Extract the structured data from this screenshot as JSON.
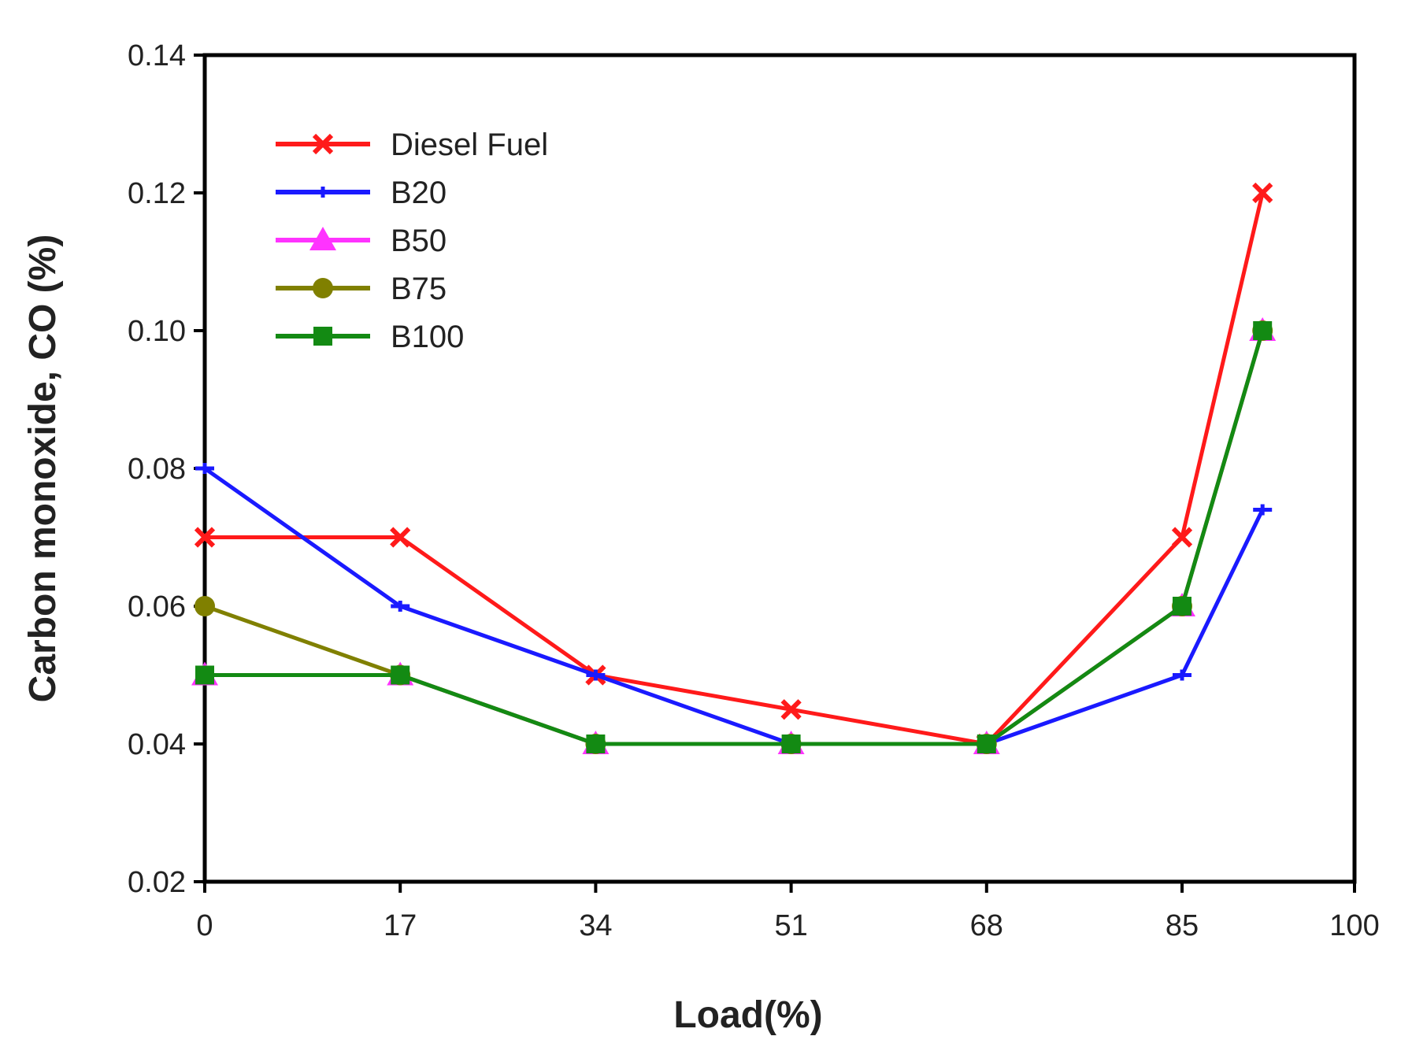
{
  "chart_data": {
    "type": "line",
    "title": "",
    "xlabel": "Load(%)",
    "ylabel": "Carbon monoxide, CO (%)",
    "xlim": [
      0,
      100
    ],
    "ylim": [
      0.02,
      0.14
    ],
    "xticks": [
      0,
      17,
      34,
      51,
      68,
      85,
      100
    ],
    "xtick_labels": [
      "0",
      "17",
      "34",
      "51",
      "68",
      "85",
      "100"
    ],
    "yticks": [
      0.02,
      0.04,
      0.06,
      0.08,
      0.1,
      0.12,
      0.14
    ],
    "ytick_labels": [
      "0.02",
      "0.04",
      "0.06",
      "0.08",
      "0.10",
      "0.12",
      "0.14"
    ],
    "grid": false,
    "legend_position": "top-left",
    "x": [
      0,
      17,
      34,
      51,
      68,
      85,
      92
    ],
    "series": [
      {
        "name": "Diesel Fuel",
        "color": "#ff1a1a",
        "marker": "x",
        "values": [
          0.07,
          0.07,
          0.05,
          0.045,
          0.04,
          0.07,
          0.12
        ]
      },
      {
        "name": "B20",
        "color": "#1a1aff",
        "marker": "plus",
        "values": [
          0.08,
          0.06,
          0.05,
          0.04,
          0.04,
          0.05,
          0.074
        ]
      },
      {
        "name": "B50",
        "color": "#ff33ff",
        "marker": "triangle",
        "values": [
          0.05,
          0.05,
          0.04,
          0.04,
          0.04,
          0.06,
          0.1
        ]
      },
      {
        "name": "B75",
        "color": "#808000",
        "marker": "circle",
        "values": [
          0.06,
          0.05,
          0.04,
          0.04,
          0.04,
          0.06,
          0.1
        ]
      },
      {
        "name": "B100",
        "color": "#138a13",
        "marker": "square",
        "values": [
          0.05,
          0.05,
          0.04,
          0.04,
          0.04,
          0.06,
          0.1
        ]
      }
    ]
  }
}
